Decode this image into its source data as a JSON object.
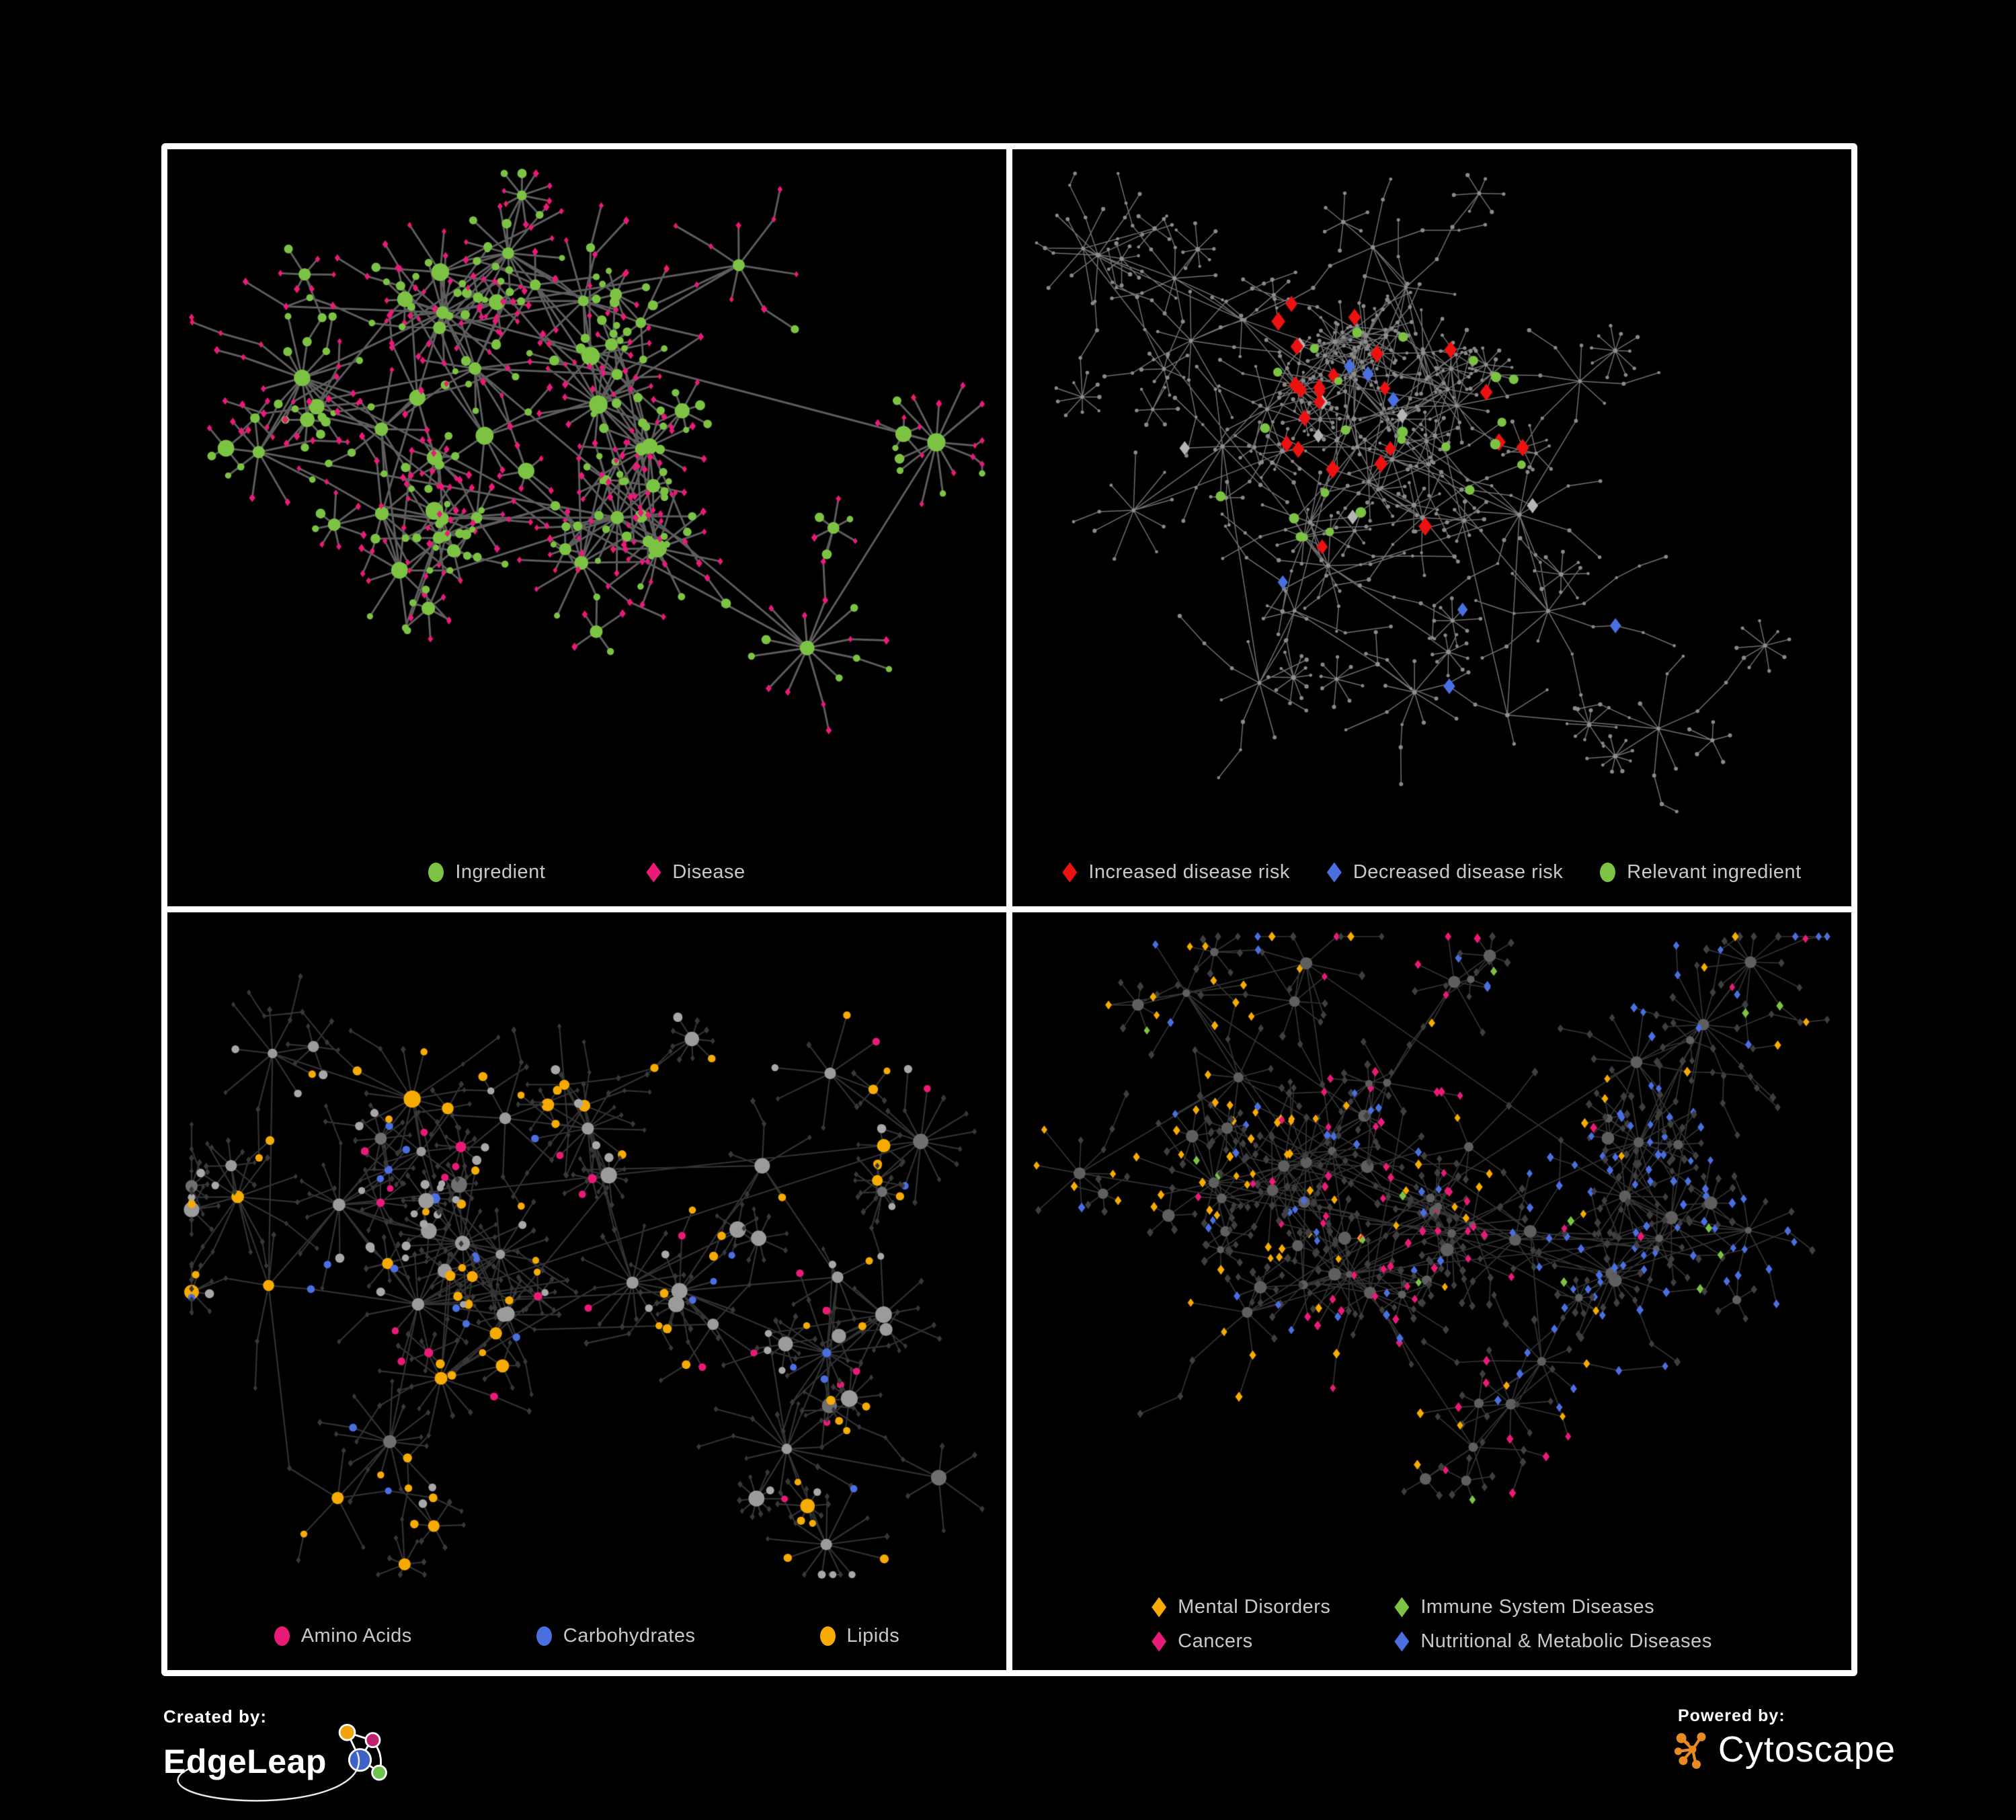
{
  "figure": {
    "background": "#000000",
    "frame_color": "#ffffff"
  },
  "colors": {
    "legend_text": "#c9c9c9",
    "green": "#7cc344",
    "pink": "#e91a78",
    "red": "#ed1111",
    "blue": "#4a6fe0",
    "amber": "#f7ab00",
    "gray_highlight": "#b5b5b5"
  },
  "panels": [
    {
      "name": "ingredient-disease-network",
      "legend": {
        "items": [
          {
            "label": "Ingredient",
            "shape": "circle",
            "color": "#7cc344"
          },
          {
            "label": "Disease",
            "shape": "diamond",
            "color": "#e91a78"
          }
        ]
      },
      "network": {
        "seed": 11,
        "hubs": 30,
        "core_bias": 0.62,
        "core_x": 0.38,
        "core_y": 0.42,
        "leaf_min": 4,
        "leaf_max": 15,
        "leaf_radius": 80,
        "chain_prob": 0.3,
        "subfan": 0.12,
        "extra_edges": 80,
        "edge": {
          "color": "#6d6d6d",
          "alpha": 0.85,
          "width": 3.0
        },
        "roles": {
          "hub": [
            {
              "shape": "circle",
              "color": "#7cc344",
              "p": 1,
              "rmin": 7,
              "rmax": 14
            }
          ],
          "leaf": [
            {
              "shape": "diamond",
              "color": "#e91a78",
              "p": 0.66,
              "rmin": 4.5,
              "rmax": 6.5
            },
            {
              "shape": "circle",
              "color": "#7cc344",
              "p": 0.34,
              "rmin": 4.5,
              "rmax": 7.5
            }
          ]
        },
        "highlights": [],
        "regions": []
      }
    },
    {
      "name": "disease-risk-network",
      "legend": {
        "items": [
          {
            "label": "Increased disease risk",
            "shape": "diamond",
            "color": "#ed1111"
          },
          {
            "label": "Decreased disease risk",
            "shape": "diamond",
            "color": "#4a6fe0"
          },
          {
            "label": "Relevant ingredient",
            "shape": "circle",
            "color": "#7cc344"
          }
        ]
      },
      "network": {
        "seed": 22,
        "hubs": 36,
        "core_bias": 0.5,
        "core_x": 0.42,
        "core_y": 0.42,
        "leaf_min": 3,
        "leaf_max": 11,
        "leaf_radius": 72,
        "chain_prob": 0.5,
        "subfan": 0.18,
        "extra_edges": 30,
        "edge": {
          "color": "#8c8c8c",
          "alpha": 0.8,
          "width": 1.5
        },
        "roles": {
          "hub": [
            {
              "shape": "circle",
              "color": "#8f8f8f",
              "p": 1,
              "rmin": 2.6,
              "rmax": 3.6
            }
          ],
          "leaf": [
            {
              "shape": "circle",
              "color": "#8a8a8a",
              "p": 1,
              "rmin": 2.2,
              "rmax": 3.2
            }
          ]
        },
        "highlights": [
          {
            "shape": "diamond",
            "color": "#ed1111",
            "count": 24,
            "rmin": 11,
            "rmax": 14,
            "zone": 0.55
          },
          {
            "shape": "diamond",
            "color": "#b5b5b5",
            "count": 7,
            "rmin": 10,
            "rmax": 12,
            "zone": 0.6
          },
          {
            "shape": "diamond",
            "color": "#4a6fe0",
            "count": 7,
            "rmin": 10,
            "rmax": 12,
            "zone": 1.0
          },
          {
            "shape": "circle",
            "color": "#7cc344",
            "count": 24,
            "rmin": 6,
            "rmax": 8,
            "zone": 0.55
          }
        ],
        "regions": []
      }
    },
    {
      "name": "ingredient-classes-network",
      "legend": {
        "items": [
          {
            "label": "Amino Acids",
            "shape": "circle",
            "color": "#e91a78"
          },
          {
            "label": "Carbohydrates",
            "shape": "circle",
            "color": "#4a6fe0"
          },
          {
            "label": "Lipids",
            "shape": "circle",
            "color": "#f7ab00"
          }
        ]
      },
      "network": {
        "seed": 33,
        "hubs": 30,
        "core_bias": 0.6,
        "core_x": 0.36,
        "core_y": 0.45,
        "leaf_min": 4,
        "leaf_max": 15,
        "leaf_radius": 78,
        "chain_prob": 0.32,
        "subfan": 0.12,
        "extra_edges": 90,
        "edge": {
          "color": "#9a9a9a",
          "alpha": 0.32,
          "width": 2.2
        },
        "roles": {
          "hub": [
            {
              "shape": "circle",
              "color": "#9b9b9b",
              "p": 0.5,
              "rmin": 7,
              "rmax": 13
            },
            {
              "shape": "circle",
              "color": "#f7ab00",
              "p": 0.26,
              "rmin": 7,
              "rmax": 11
            },
            {
              "shape": "circle",
              "color": "#6f6f6f",
              "p": 0.1,
              "rmin": 7,
              "rmax": 12
            },
            {
              "shape": "circle",
              "color": "#4a6fe0",
              "p": 0.07,
              "rmin": 6,
              "rmax": 9
            },
            {
              "shape": "circle",
              "color": "#e91a78",
              "p": 0.07,
              "rmin": 6,
              "rmax": 9
            }
          ],
          "leaf": [
            {
              "shape": "diamond",
              "color": "#383838",
              "p": 0.76,
              "rmin": 4,
              "rmax": 5.5,
              "base": true
            },
            {
              "shape": "circle",
              "color": "#a8a8a8",
              "p": 0.09,
              "rmin": 5,
              "rmax": 7
            },
            {
              "shape": "circle",
              "color": "#f7ab00",
              "p": 0.09,
              "rmin": 5,
              "rmax": 7
            },
            {
              "shape": "circle",
              "color": "#e91a78",
              "p": 0.04,
              "rmin": 5,
              "rmax": 6
            },
            {
              "shape": "circle",
              "color": "#4a6fe0",
              "p": 0.02,
              "rmin": 5,
              "rmax": 6
            }
          ]
        },
        "highlights": [],
        "regions": [
          {
            "xmin": 0.28,
            "xmax": 0.56,
            "ymax": 0.32,
            "color": "#f7ab00",
            "p": 0.45,
            "roles": [
              "hub",
              "leaf"
            ]
          }
        ]
      }
    },
    {
      "name": "disease-categories-network",
      "legend": {
        "items": [
          {
            "label": "Mental Disorders",
            "shape": "diamond",
            "color": "#f7ab00"
          },
          {
            "label": "Immune System Diseases",
            "shape": "diamond",
            "color": "#7cc344"
          },
          {
            "label": "Cancers",
            "shape": "diamond",
            "color": "#e91a78"
          },
          {
            "label": "Nutritional & Metabolic Diseases",
            "shape": "diamond",
            "color": "#4a6fe0"
          }
        ]
      },
      "network": {
        "seed": 44,
        "hubs": 36,
        "core_bias": 0.55,
        "core_x": 0.45,
        "core_y": 0.42,
        "leaf_min": 5,
        "leaf_max": 16,
        "leaf_radius": 74,
        "chain_prob": 0.38,
        "subfan": 0.12,
        "extra_edges": 70,
        "edge": {
          "color": "#a8a8a8",
          "alpha": 0.3,
          "width": 1.7
        },
        "roles": {
          "hub": [
            {
              "shape": "circle",
              "color": "#5f5f5f",
              "p": 1,
              "rmin": 5,
              "rmax": 10
            }
          ],
          "leaf": [
            {
              "shape": "diamond",
              "color": "#3f3f3f",
              "p": 0.6,
              "rmin": 5.5,
              "rmax": 7,
              "base": true
            },
            {
              "shape": "diamond",
              "color": "#4a6fe0",
              "p": 0.15,
              "rmin": 6,
              "rmax": 7.5
            },
            {
              "shape": "diamond",
              "color": "#f7ab00",
              "p": 0.12,
              "rmin": 6,
              "rmax": 7.5
            },
            {
              "shape": "diamond",
              "color": "#e91a78",
              "p": 0.09,
              "rmin": 6,
              "rmax": 7.5
            },
            {
              "shape": "diamond",
              "color": "#7cc344",
              "p": 0.04,
              "rmin": 6,
              "rmax": 7.5
            }
          ]
        },
        "highlights": [],
        "regions": [
          {
            "xmax": 0.36,
            "color": "#f7ab00",
            "p": 0.55,
            "roles": [
              "leaf"
            ]
          },
          {
            "xmin": 0.34,
            "xmax": 0.6,
            "color": "#e91a78",
            "p": 0.45,
            "roles": [
              "leaf"
            ]
          },
          {
            "xmin": 0.58,
            "color": "#4a6fe0",
            "p": 0.55,
            "roles": [
              "leaf"
            ]
          }
        ]
      }
    }
  ],
  "footer": {
    "created_by": {
      "label": "Created by:",
      "brand": "EdgeLeap"
    },
    "powered_by": {
      "label": "Powered by:",
      "brand": "Cytoscape"
    },
    "edgeleap_icon_colors": {
      "orange": "#f0a30a",
      "magenta": "#c0216e",
      "blue": "#3e63c8",
      "green": "#6cc24a"
    },
    "cytoscape_icon_color": "#e98b22"
  }
}
